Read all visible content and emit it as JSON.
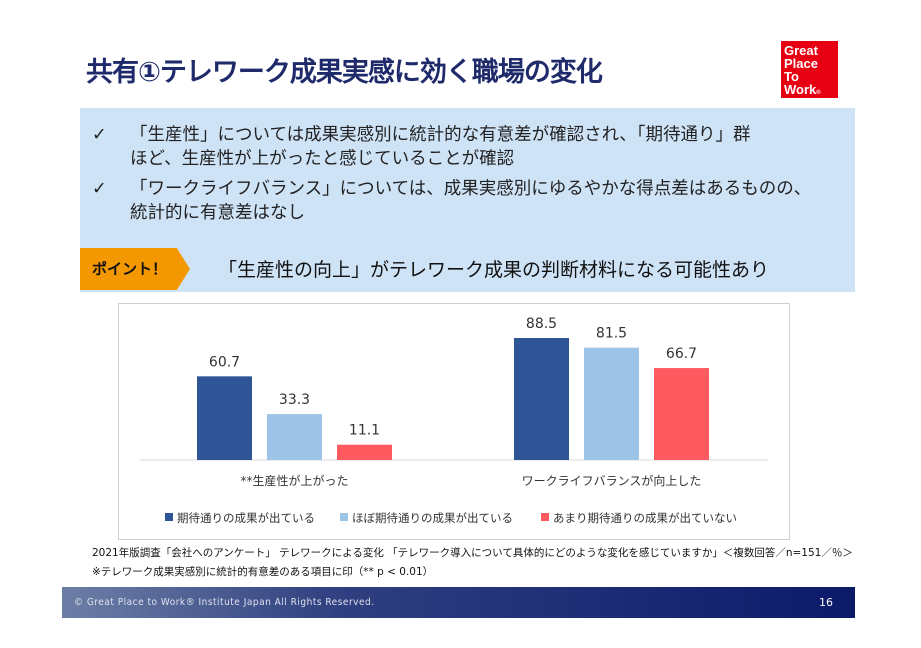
{
  "title": "共有①テレワーク成果実感に効く職場の変化",
  "logo": "Great Place To Work",
  "bullets": [
    {
      "mark": "✓",
      "lines": [
        "「生産性」については成果実感別に統計的な有意差が確認され、「期待通り」群",
        "ほど、生産性が上がったと感じていることが確認"
      ]
    },
    {
      "mark": "✓",
      "lines": [
        "「ワークライフバランス」については、成果実感別にゆるやかな得点差はあるものの、",
        "統計的に有意差はなし"
      ]
    }
  ],
  "point": {
    "label": "ポイント！",
    "text": "「生産性の向上」がテレワーク成果の判断材料になる可能性あり"
  },
  "chart_data": {
    "type": "bar",
    "categories": [
      "**生産性が上がった",
      "ワークライフバランスが向上した"
    ],
    "series": [
      {
        "name": "期待通りの成果が出ている",
        "color": "#2f5597",
        "values": [
          60.7,
          88.5
        ]
      },
      {
        "name": "ほぼ期待通りの成果が出ている",
        "color": "#9dc3e6",
        "values": [
          33.3,
          81.5
        ]
      },
      {
        "name": "あまり期待通りの成果が出ていない",
        "color": "#ff5a5f",
        "values": [
          11.1,
          66.7
        ]
      }
    ],
    "ylim": [
      0,
      100
    ],
    "grid": false,
    "legend": "bottom"
  },
  "notes": [
    "2021年版調査「会社へのアンケート」 テレワークによる変化 「テレワーク導入について具体的にどのような変化を感じていますか」＜複数回答／n=151／％＞",
    "※テレワーク成果実感別に統計的有意差のある項目に印（** p < 0.01）"
  ],
  "footer": {
    "copyright": "© Great Place to Work® Institute Japan All Rights Reserved.",
    "page": "16"
  }
}
